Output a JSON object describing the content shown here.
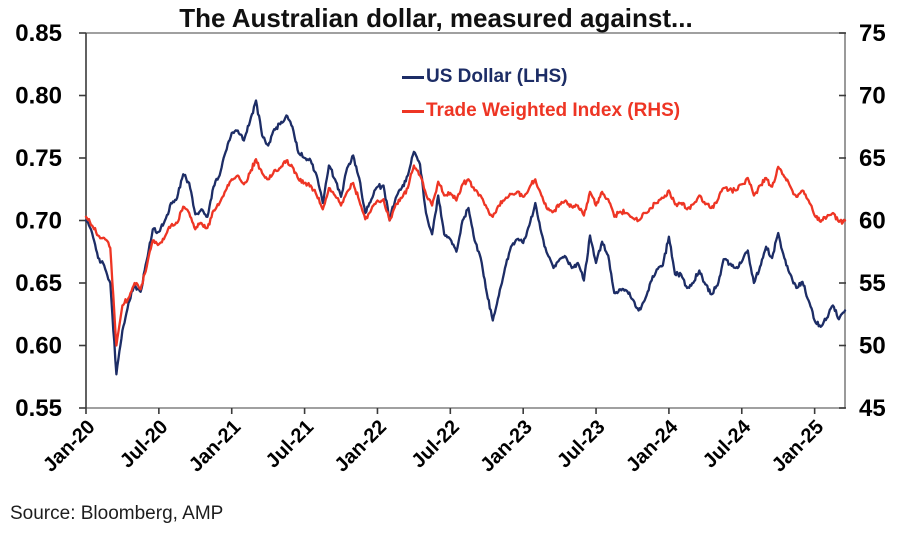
{
  "source_note": "Source: Bloomberg, AMP",
  "chart_data": {
    "type": "line",
    "title": "The Australian dollar, measured against...",
    "grid": false,
    "legend_position": "top-center-inside",
    "x_start": "Jan-2020",
    "x_step_months": 0.5,
    "x_tick_months": [
      0,
      6,
      12,
      18,
      24,
      30,
      36,
      42,
      48,
      54,
      60
    ],
    "x_tick_labels": [
      "Jan-20",
      "Jul-20",
      "Jan-21",
      "Jul-21",
      "Jan-22",
      "Jul-22",
      "Jan-23",
      "Jul-23",
      "Jan-24",
      "Jul-24",
      "Jan-25"
    ],
    "left_axis": {
      "min": 0.55,
      "max": 0.85,
      "ticks": [
        0.85,
        0.8,
        0.75,
        0.7,
        0.65,
        0.6,
        0.55
      ],
      "tick_labels": [
        "0.85",
        "0.80",
        "0.75",
        "0.70",
        "0.65",
        "0.60",
        "0.55"
      ]
    },
    "right_axis": {
      "min": 45,
      "max": 75,
      "ticks": [
        75,
        70,
        65,
        60,
        55,
        50,
        45
      ],
      "tick_labels": [
        "75",
        "70",
        "65",
        "60",
        "55",
        "50",
        "45"
      ]
    },
    "series": [
      {
        "name": "US Dollar (LHS)",
        "axis": "left",
        "color": "#1d2d66",
        "values": [
          0.7,
          0.69,
          0.67,
          0.664,
          0.65,
          0.577,
          0.612,
          0.634,
          0.648,
          0.643,
          0.668,
          0.693,
          0.691,
          0.7,
          0.714,
          0.718,
          0.737,
          0.73,
          0.705,
          0.709,
          0.703,
          0.727,
          0.736,
          0.755,
          0.77,
          0.772,
          0.764,
          0.779,
          0.796,
          0.768,
          0.76,
          0.773,
          0.777,
          0.784,
          0.775,
          0.754,
          0.75,
          0.748,
          0.736,
          0.714,
          0.744,
          0.733,
          0.719,
          0.742,
          0.752,
          0.734,
          0.706,
          0.717,
          0.727,
          0.728,
          0.7,
          0.718,
          0.726,
          0.736,
          0.755,
          0.745,
          0.706,
          0.689,
          0.72,
          0.689,
          0.685,
          0.675,
          0.7,
          0.71,
          0.684,
          0.67,
          0.642,
          0.62,
          0.64,
          0.662,
          0.679,
          0.685,
          0.682,
          0.696,
          0.714,
          0.69,
          0.673,
          0.662,
          0.669,
          0.671,
          0.662,
          0.666,
          0.652,
          0.688,
          0.666,
          0.683,
          0.672,
          0.642,
          0.645,
          0.644,
          0.637,
          0.628,
          0.636,
          0.651,
          0.661,
          0.664,
          0.687,
          0.657,
          0.657,
          0.646,
          0.65,
          0.66,
          0.649,
          0.641,
          0.648,
          0.669,
          0.665,
          0.662,
          0.667,
          0.676,
          0.65,
          0.663,
          0.679,
          0.67,
          0.69,
          0.67,
          0.657,
          0.646,
          0.651,
          0.636,
          0.62,
          0.615,
          0.622,
          0.632,
          0.621,
          0.628
        ]
      },
      {
        "name": "Trade Weighted Index (RHS)",
        "axis": "right",
        "color": "#ee3524",
        "values": [
          60.3,
          59.6,
          58.8,
          58.6,
          57.8,
          50.0,
          53.2,
          53.8,
          55.0,
          54.5,
          56.3,
          58.4,
          58.1,
          58.7,
          59.6,
          59.8,
          61.1,
          60.6,
          59.3,
          59.8,
          59.4,
          60.8,
          61.4,
          62.4,
          63.3,
          63.6,
          62.9,
          63.8,
          64.9,
          63.8,
          63.3,
          64.0,
          64.2,
          64.8,
          64.3,
          63.3,
          63.0,
          62.8,
          62.0,
          60.9,
          62.6,
          62.0,
          61.2,
          62.3,
          63.0,
          61.6,
          60.1,
          60.9,
          61.6,
          61.7,
          60.0,
          61.3,
          61.8,
          62.6,
          64.4,
          63.6,
          62.1,
          61.2,
          63.1,
          62.0,
          62.2,
          61.6,
          62.9,
          63.3,
          62.4,
          62.0,
          61.0,
          60.3,
          61.2,
          61.7,
          62.1,
          62.3,
          61.9,
          62.6,
          63.3,
          62.0,
          60.9,
          60.7,
          61.3,
          61.6,
          61.1,
          61.2,
          60.4,
          62.3,
          61.2,
          62.3,
          61.7,
          60.3,
          60.7,
          60.6,
          60.2,
          60.0,
          60.6,
          61.0,
          61.4,
          61.8,
          62.4,
          61.3,
          61.4,
          60.9,
          61.3,
          62.0,
          61.3,
          61.0,
          61.6,
          62.6,
          62.5,
          62.4,
          62.9,
          63.4,
          62.0,
          62.8,
          63.4,
          62.7,
          64.3,
          63.5,
          62.7,
          61.9,
          62.4,
          61.6,
          60.4,
          59.9,
          60.3,
          60.6,
          59.9,
          60.0
        ]
      }
    ]
  }
}
